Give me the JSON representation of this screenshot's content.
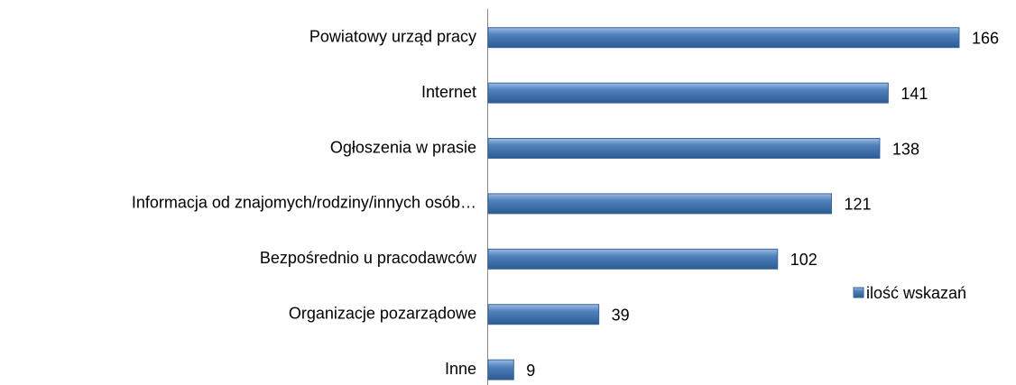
{
  "chart_data": {
    "type": "barh",
    "categories": [
      "Powiatowy urząd pracy",
      "Internet",
      "Ogłoszenia w prasie",
      "Informacja od znajomych/rodziny/innych osób…",
      "Bezpośrednio u pracodawców",
      "Organizacje pozarządowe",
      "Inne"
    ],
    "series": [
      {
        "name": "ilość wskazań",
        "color": "#4f81bd",
        "values": [
          166,
          141,
          138,
          121,
          102,
          39,
          9
        ]
      }
    ],
    "xlim": [
      0,
      180
    ],
    "legend": "right"
  }
}
